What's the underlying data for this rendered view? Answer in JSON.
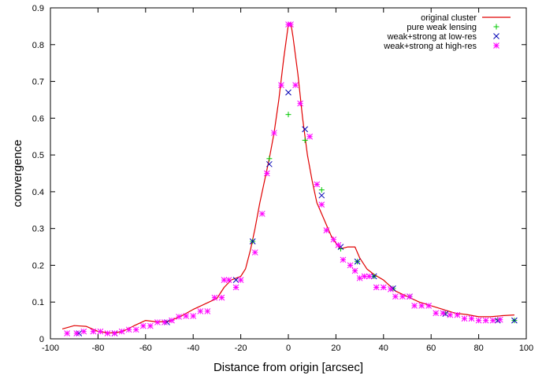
{
  "chart_data": {
    "type": "scatter",
    "title": "",
    "xlabel": "Distance from origin [arcsec]",
    "ylabel": "convergence",
    "xlim": [
      -100,
      100
    ],
    "ylim": [
      0,
      0.9
    ],
    "x_ticks": [
      "-100",
      "-80",
      "-60",
      "-40",
      "-20",
      "0",
      "20",
      "40",
      "60",
      "80",
      "100"
    ],
    "y_ticks": [
      "0",
      "0.1",
      "0.2",
      "0.3",
      "0.4",
      "0.5",
      "0.6",
      "0.7",
      "0.8",
      "0.9"
    ],
    "grid": false,
    "legend_position": "top-right",
    "series": [
      {
        "name": "original cluster",
        "style": "line",
        "color": "#e00000",
        "points": [
          [
            -95,
            0.027
          ],
          [
            -90,
            0.036
          ],
          [
            -85,
            0.034
          ],
          [
            -80,
            0.02
          ],
          [
            -75,
            0.016
          ],
          [
            -70,
            0.019
          ],
          [
            -65,
            0.035
          ],
          [
            -60,
            0.05
          ],
          [
            -55,
            0.046
          ],
          [
            -50,
            0.048
          ],
          [
            -45,
            0.062
          ],
          [
            -40,
            0.08
          ],
          [
            -35,
            0.095
          ],
          [
            -30,
            0.11
          ],
          [
            -27,
            0.14
          ],
          [
            -24,
            0.16
          ],
          [
            -20,
            0.17
          ],
          [
            -18,
            0.19
          ],
          [
            -16,
            0.24
          ],
          [
            -14,
            0.3
          ],
          [
            -12,
            0.37
          ],
          [
            -10,
            0.43
          ],
          [
            -8,
            0.49
          ],
          [
            -6,
            0.56
          ],
          [
            -4,
            0.65
          ],
          [
            -2,
            0.76
          ],
          [
            0,
            0.855
          ],
          [
            1,
            0.86
          ],
          [
            2,
            0.82
          ],
          [
            4,
            0.72
          ],
          [
            6,
            0.6
          ],
          [
            8,
            0.5
          ],
          [
            10,
            0.43
          ],
          [
            12,
            0.37
          ],
          [
            14,
            0.34
          ],
          [
            16,
            0.31
          ],
          [
            18,
            0.28
          ],
          [
            20,
            0.26
          ],
          [
            22,
            0.245
          ],
          [
            25,
            0.25
          ],
          [
            28,
            0.25
          ],
          [
            30,
            0.22
          ],
          [
            33,
            0.19
          ],
          [
            36,
            0.175
          ],
          [
            40,
            0.16
          ],
          [
            45,
            0.13
          ],
          [
            50,
            0.115
          ],
          [
            55,
            0.1
          ],
          [
            60,
            0.09
          ],
          [
            65,
            0.08
          ],
          [
            70,
            0.07
          ],
          [
            75,
            0.066
          ],
          [
            80,
            0.06
          ],
          [
            85,
            0.06
          ],
          [
            90,
            0.063
          ],
          [
            95,
            0.065
          ]
        ]
      },
      {
        "name": "pure weak lensing",
        "style": "plus",
        "color": "#00c800",
        "points": [
          [
            -15,
            0.265
          ],
          [
            -8,
            0.49
          ],
          [
            0,
            0.61
          ],
          [
            7,
            0.54
          ],
          [
            14,
            0.405
          ],
          [
            22,
            0.245
          ],
          [
            29,
            0.21
          ],
          [
            36,
            0.17
          ],
          [
            44,
            0.137
          ],
          [
            51,
            0.115
          ],
          [
            66,
            0.07
          ],
          [
            88,
            0.052
          ],
          [
            95,
            0.05
          ]
        ]
      },
      {
        "name": "weak+strong at low-res",
        "style": "cross",
        "color": "#0000b4",
        "points": [
          [
            -15,
            0.265
          ],
          [
            -8,
            0.475
          ],
          [
            0,
            0.67
          ],
          [
            7,
            0.57
          ],
          [
            14,
            0.39
          ],
          [
            22,
            0.25
          ],
          [
            29,
            0.21
          ],
          [
            36,
            0.17
          ],
          [
            44,
            0.137
          ],
          [
            51,
            0.115
          ],
          [
            66,
            0.068
          ],
          [
            88,
            0.05
          ],
          [
            95,
            0.05
          ],
          [
            -22,
            0.16
          ],
          [
            -51,
            0.045
          ],
          [
            -73,
            0.015
          ],
          [
            -88,
            0.015
          ]
        ]
      },
      {
        "name": "weak+strong at high-res",
        "style": "asterisk",
        "color": "#ff00ff",
        "points": [
          [
            -93,
            0.015
          ],
          [
            -89,
            0.015
          ],
          [
            -86,
            0.02
          ],
          [
            -82,
            0.02
          ],
          [
            -79,
            0.02
          ],
          [
            -76,
            0.015
          ],
          [
            -73,
            0.015
          ],
          [
            -70,
            0.02
          ],
          [
            -67,
            0.025
          ],
          [
            -64,
            0.025
          ],
          [
            -61,
            0.035
          ],
          [
            -58,
            0.035
          ],
          [
            -55,
            0.045
          ],
          [
            -52,
            0.045
          ],
          [
            -49,
            0.05
          ],
          [
            -46,
            0.06
          ],
          [
            -43,
            0.062
          ],
          [
            -40,
            0.062
          ],
          [
            -37,
            0.075
          ],
          [
            -34,
            0.075
          ],
          [
            -31,
            0.112
          ],
          [
            -28,
            0.112
          ],
          [
            -27,
            0.16
          ],
          [
            -25,
            0.16
          ],
          [
            -22,
            0.14
          ],
          [
            -20,
            0.16
          ],
          [
            -14,
            0.235
          ],
          [
            -11,
            0.34
          ],
          [
            -9,
            0.45
          ],
          [
            -6,
            0.56
          ],
          [
            -3,
            0.69
          ],
          [
            0,
            0.855
          ],
          [
            1,
            0.855
          ],
          [
            3,
            0.69
          ],
          [
            5,
            0.64
          ],
          [
            9,
            0.55
          ],
          [
            12,
            0.42
          ],
          [
            14,
            0.365
          ],
          [
            16,
            0.295
          ],
          [
            19,
            0.27
          ],
          [
            21,
            0.255
          ],
          [
            23,
            0.215
          ],
          [
            26,
            0.2
          ],
          [
            28,
            0.185
          ],
          [
            30,
            0.165
          ],
          [
            32,
            0.17
          ],
          [
            34,
            0.17
          ],
          [
            37,
            0.14
          ],
          [
            40,
            0.14
          ],
          [
            43,
            0.135
          ],
          [
            45,
            0.115
          ],
          [
            48,
            0.115
          ],
          [
            51,
            0.115
          ],
          [
            53,
            0.09
          ],
          [
            56,
            0.09
          ],
          [
            59,
            0.09
          ],
          [
            62,
            0.07
          ],
          [
            65,
            0.07
          ],
          [
            68,
            0.065
          ],
          [
            71,
            0.065
          ],
          [
            74,
            0.055
          ],
          [
            77,
            0.055
          ],
          [
            80,
            0.05
          ],
          [
            83,
            0.05
          ],
          [
            86,
            0.05
          ],
          [
            89,
            0.052
          ]
        ]
      }
    ]
  }
}
